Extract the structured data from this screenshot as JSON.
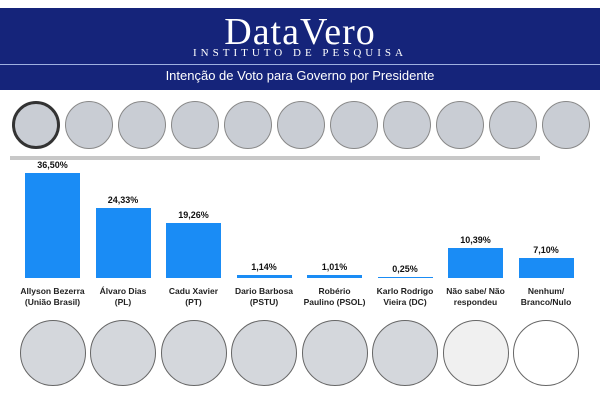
{
  "header": {
    "title": "DataVero",
    "subtitle": "INSTITUTO DE PESQUISA"
  },
  "chart_data": {
    "type": "bar",
    "title": "Intenção de Voto para Governo por Presidente",
    "categories": [
      "Allyson Bezerra\n(União Brasil)",
      "Álvaro Dias\n(PL)",
      "Cadu Xavier\n(PT)",
      "Dario Barbosa\n(PSTU)",
      "Robério\nPaulino (PSOL)",
      "Karlo Rodrigo\nVieira (DC)",
      "Não sabe/ Não\nrespondeu",
      "Nenhum/\nBranco/Nulo"
    ],
    "values": [
      36.5,
      24.33,
      19.26,
      1.14,
      1.01,
      0.25,
      10.39,
      7.1
    ],
    "value_labels": [
      "36,50%",
      "24,33%",
      "19,26%",
      "1,14%",
      "1,01%",
      "0,25%",
      "10,39%",
      "7,10%"
    ],
    "color": "#1a8cf5"
  }
}
